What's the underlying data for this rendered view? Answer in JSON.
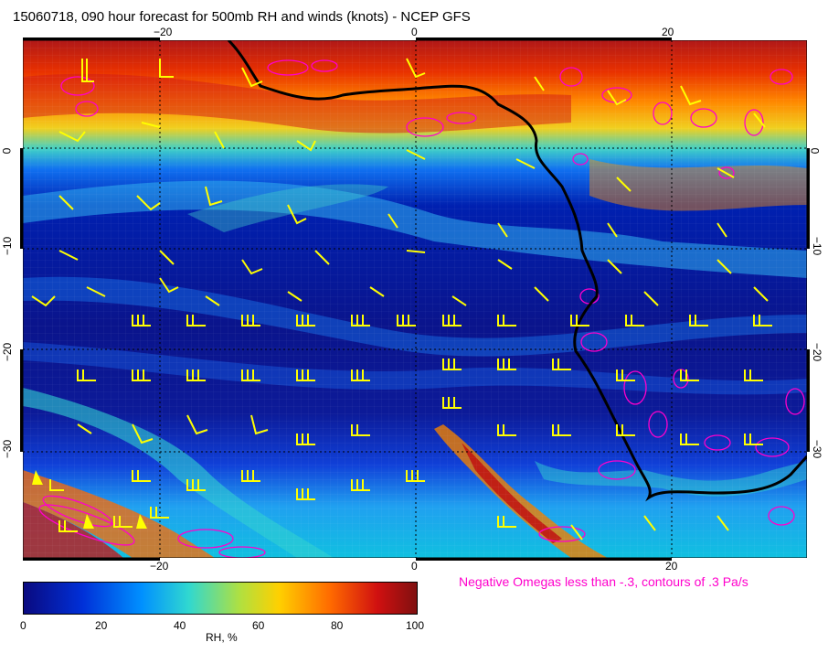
{
  "title": "15060718, 090 hour forecast for 500mb RH and winds (knots) - NCEP GFS",
  "x_ticks_top": [
    "−20",
    "0",
    "20"
  ],
  "x_ticks_bottom": [
    "−20",
    "0",
    "20"
  ],
  "y_ticks_left": [
    "0",
    "−10",
    "−20",
    "−30"
  ],
  "y_ticks_right": [
    "0",
    "−10",
    "−20",
    "−30"
  ],
  "omega_note": "Negative Omegas less than -.3, contours of .3 Pa/s",
  "colorbar": {
    "ticks": [
      "0",
      "20",
      "40",
      "60",
      "80",
      "100"
    ],
    "label": "RH, %",
    "colors": [
      "#0a0a80",
      "#0038e0",
      "#00a0ff",
      "#30d8d0",
      "#d8e020",
      "#ff9000",
      "#e02000",
      "#801010"
    ]
  },
  "map": {
    "lon_range": [
      -30,
      31
    ],
    "lat_range": [
      -40,
      10
    ],
    "coastline_color": "#000000",
    "wind_barb_color": "#ffff00",
    "omega_contour_color": "#ff00cc"
  }
}
